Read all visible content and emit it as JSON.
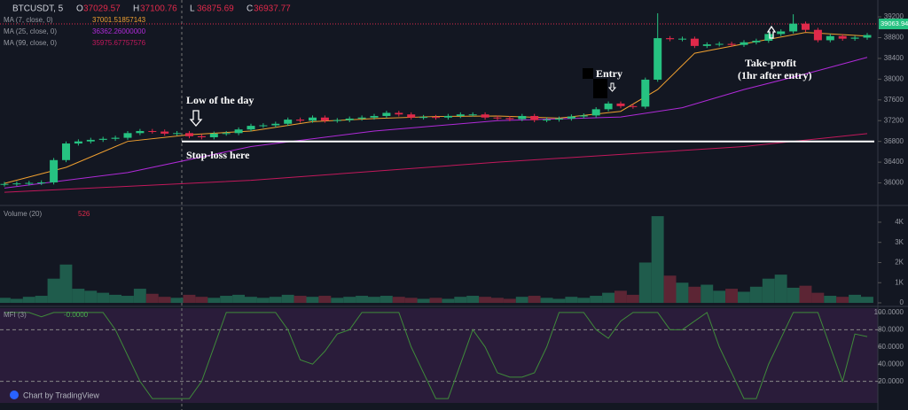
{
  "chart_data": [
    {
      "type": "candlestick",
      "title": "BTCUSDT, 5",
      "ohlc": [
        {
          "label": "O",
          "value": 37029.57
        },
        {
          "label": "H",
          "value": 37100.76
        },
        {
          "label": "L",
          "value": 36875.69
        },
        {
          "label": "C",
          "value": 36937.77
        }
      ],
      "up_color": "#26c281",
      "down_color": "#e0294a",
      "open": [
        35970,
        35980,
        35990,
        36000,
        36010,
        36440,
        36760,
        36800,
        36830,
        36850,
        36870,
        36960,
        37000,
        36990,
        36950,
        36960,
        36900,
        36880,
        36950,
        36960,
        37030,
        37100,
        37110,
        37140,
        37220,
        37200,
        37260,
        37200,
        37210,
        37240,
        37260,
        37290,
        37350,
        37320,
        37260,
        37270,
        37260,
        37290,
        37320,
        37320,
        37260,
        37250,
        37230,
        37290,
        37210,
        37220,
        37240,
        37280,
        37300,
        37420,
        37530,
        37480,
        37470,
        37990,
        38790,
        38770,
        38780,
        38640,
        38670,
        38680,
        38660,
        38710,
        38740,
        38870,
        38920,
        39070,
        38950,
        38750,
        38830,
        38780,
        38800
      ],
      "high": [
        36020,
        36030,
        36040,
        36050,
        36480,
        36800,
        36840,
        36870,
        36890,
        36910,
        37000,
        37040,
        37040,
        37030,
        37000,
        37000,
        36940,
        36990,
        37000,
        37070,
        37140,
        37150,
        37180,
        37260,
        37260,
        37300,
        37300,
        37250,
        37280,
        37300,
        37330,
        37390,
        37390,
        37360,
        37310,
        37310,
        37330,
        37360,
        37360,
        37360,
        37300,
        37290,
        37330,
        37330,
        37260,
        37280,
        37320,
        37340,
        37460,
        37570,
        37570,
        37520,
        38030,
        39270,
        38830,
        38820,
        38820,
        38710,
        38720,
        38720,
        38750,
        38780,
        38910,
        38960,
        39250,
        39110,
        38990,
        38870,
        38870,
        38840,
        38890
      ],
      "low": [
        35930,
        35940,
        35950,
        35960,
        35970,
        36400,
        36720,
        36760,
        36790,
        36810,
        36830,
        36920,
        36950,
        36910,
        36910,
        36860,
        36840,
        36840,
        36910,
        36920,
        36990,
        37060,
        37070,
        37100,
        37160,
        37160,
        37160,
        37160,
        37170,
        37200,
        37220,
        37250,
        37280,
        37220,
        37220,
        37220,
        37220,
        37250,
        37280,
        37220,
        37210,
        37190,
        37190,
        37170,
        37170,
        37180,
        37200,
        37240,
        37260,
        37380,
        37440,
        37430,
        37430,
        37950,
        38730,
        38730,
        38600,
        38600,
        38630,
        38620,
        38620,
        38670,
        38700,
        38830,
        38880,
        38910,
        38710,
        38710,
        38740,
        38740,
        38760
      ],
      "close": [
        35980,
        35990,
        36000,
        36010,
        36440,
        36760,
        36800,
        36830,
        36850,
        36870,
        36960,
        37000,
        36990,
        36950,
        36960,
        36900,
        36880,
        36950,
        36960,
        37030,
        37100,
        37110,
        37140,
        37220,
        37200,
        37260,
        37200,
        37210,
        37240,
        37260,
        37290,
        37350,
        37320,
        37260,
        37270,
        37260,
        37290,
        37320,
        37320,
        37260,
        37250,
        37230,
        37290,
        37210,
        37220,
        37240,
        37280,
        37300,
        37420,
        37530,
        37480,
        37470,
        37990,
        38790,
        38770,
        38780,
        38640,
        38670,
        38680,
        38660,
        38710,
        38740,
        38870,
        38920,
        39070,
        38950,
        38750,
        38830,
        38780,
        38800,
        38850
      ],
      "indicators": [
        {
          "name": "MA (7, close, 0)",
          "value": 37001.51857143,
          "color": "#f0a030",
          "x": [
            0,
            5,
            10,
            15,
            20,
            25,
            30,
            35,
            40,
            45,
            50,
            53,
            56,
            60,
            65,
            70
          ],
          "values": [
            35990,
            36300,
            36800,
            36930,
            37000,
            37180,
            37240,
            37280,
            37290,
            37250,
            37380,
            37800,
            38500,
            38680,
            38900,
            38830
          ]
        },
        {
          "name": "MA (25, close, 0)",
          "value": {
            "value": 36362.26,
            "label": "36362.26000000"
          },
          "color": "#b02ad8",
          "x": [
            0,
            10,
            20,
            30,
            40,
            50,
            55,
            60,
            65,
            70
          ],
          "values": [
            35900,
            36200,
            36700,
            37000,
            37200,
            37270,
            37450,
            37800,
            38100,
            38420
          ]
        },
        {
          "name": "MA (99, close, 0)",
          "value": 35975.67757576,
          "color": "#c2185b",
          "x": [
            0,
            20,
            40,
            60,
            70
          ],
          "values": [
            35820,
            36050,
            36400,
            36700,
            36950
          ]
        }
      ],
      "last_price": 39063.94,
      "stop_loss": 36800,
      "annotations": [
        "Low of the day",
        "Stop-loss here",
        "Entry",
        "Take-profit",
        "(1hr after entry)"
      ],
      "ylim": [
        35600,
        39440
      ],
      "yticks": [
        36000,
        36400,
        36800,
        37200,
        37600,
        38000,
        38400,
        38800,
        39200
      ]
    },
    {
      "type": "bar",
      "title": "Volume (20)",
      "value": 526,
      "values": [
        250,
        200,
        300,
        350,
        1200,
        1900,
        700,
        600,
        500,
        400,
        350,
        700,
        450,
        300,
        250,
        400,
        300,
        250,
        350,
        400,
        300,
        250,
        300,
        400,
        350,
        300,
        350,
        250,
        300,
        350,
        300,
        350,
        300,
        250,
        200,
        250,
        200,
        300,
        350,
        300,
        250,
        200,
        300,
        350,
        250,
        200,
        300,
        250,
        350,
        500,
        600,
        400,
        2000,
        4300,
        1350,
        1000,
        800,
        900,
        600,
        700,
        550,
        800,
        1200,
        1400,
        750,
        850,
        500,
        350,
        300,
        400,
        300
      ],
      "ylim": [
        0,
        4700
      ],
      "yticks": [
        0,
        {
          "value": 1000,
          "label": "1K"
        },
        {
          "value": 2000,
          "label": "2K"
        },
        {
          "value": 3000,
          "label": "3K"
        },
        {
          "value": 4000,
          "label": "4K"
        }
      ]
    },
    {
      "type": "line",
      "title": "MFI (3)",
      "value": 0,
      "value_label": "-0.0000",
      "color": "#3f8a3a",
      "values": [
        100,
        100,
        100,
        95,
        100,
        100,
        100,
        100,
        100,
        80,
        50,
        20,
        0,
        0,
        0,
        0,
        20,
        60,
        100,
        100,
        100,
        100,
        100,
        80,
        45,
        40,
        55,
        75,
        80,
        100,
        100,
        100,
        100,
        60,
        30,
        0,
        0,
        40,
        80,
        60,
        30,
        25,
        25,
        30,
        60,
        100,
        100,
        100,
        80,
        70,
        90,
        100,
        100,
        100,
        80,
        80,
        90,
        100,
        60,
        30,
        0,
        0,
        40,
        70,
        100,
        100,
        100,
        60,
        20,
        75,
        72
      ],
      "bands": [
        80,
        20
      ],
      "ylim": [
        -5,
        105
      ],
      "yticks": [
        {
          "value": 100,
          "label": "100.0000"
        },
        {
          "value": 80,
          "label": "80.0000"
        },
        {
          "value": 60,
          "label": "60.0000"
        },
        {
          "value": 40,
          "label": "40.0000"
        },
        {
          "value": 20,
          "label": "20.0000"
        }
      ]
    }
  ],
  "footer": "Chart by TradingView"
}
